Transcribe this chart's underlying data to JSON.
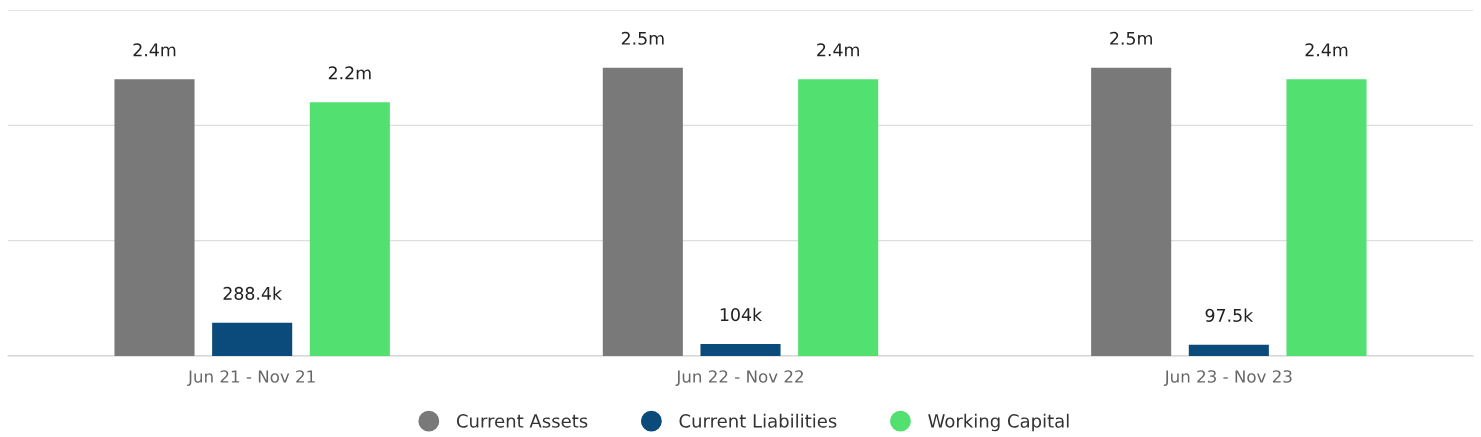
{
  "chart_data": {
    "type": "bar",
    "categories": [
      "Jun 21 - Nov 21",
      "Jun 22 - Nov 22",
      "Jun 23 - Nov 23"
    ],
    "series": [
      {
        "name": "Current Assets",
        "color": "#797979",
        "values": [
          2400000,
          2500000,
          2500000
        ],
        "value_labels": [
          "2.4m",
          "2.5m",
          "2.5m"
        ]
      },
      {
        "name": "Current Liabilities",
        "color": "#0b4b7b",
        "values": [
          288400,
          104000,
          97500
        ],
        "value_labels": [
          "288.4k",
          "104k",
          "97.5k"
        ]
      },
      {
        "name": "Working Capital",
        "color": "#52e070",
        "values": [
          2200000,
          2400000,
          2400000
        ],
        "value_labels": [
          "2.2m",
          "2.4m",
          "2.4m"
        ]
      }
    ],
    "ylim": [
      0,
      3000000
    ],
    "yticks": [
      {
        "value": 0,
        "label": null
      },
      {
        "value": 1000000,
        "label": null
      },
      {
        "value": 2000000,
        "label": null
      },
      {
        "value": 3000000,
        "label": null
      }
    ],
    "tick_labels": "x",
    "grid": "y",
    "legend": "bottom",
    "marker": "circle"
  }
}
